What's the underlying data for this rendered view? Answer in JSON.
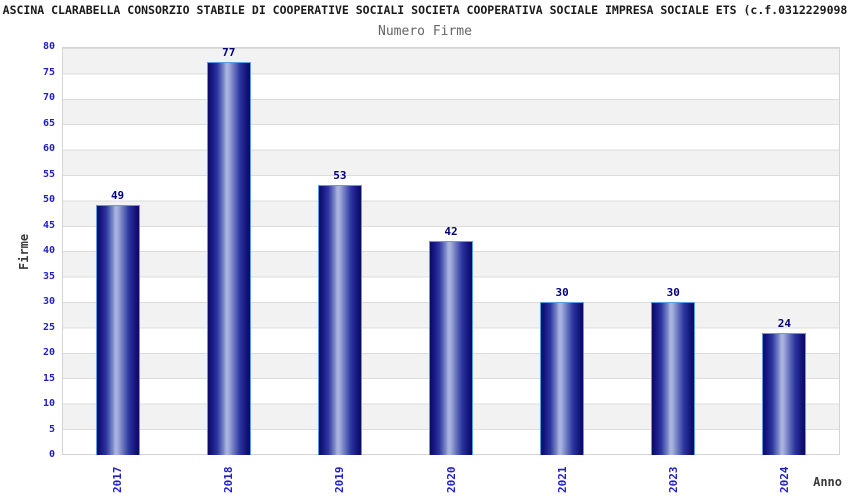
{
  "header": {
    "title": "ASCINA CLARABELLA CONSORZIO STABILE DI COOPERATIVE SOCIALI SOCIETA COOPERATIVA SOCIALE IMPRESA SOCIALE ETS (c.f.0312229098",
    "subtitle": "Numero Firme"
  },
  "chart_data": {
    "type": "bar",
    "title": "Numero Firme",
    "categories": [
      "2017",
      "2018",
      "2019",
      "2020",
      "2021",
      "2023",
      "2024"
    ],
    "values": [
      49,
      77,
      53,
      42,
      30,
      30,
      24
    ],
    "xlabel": "Anno",
    "ylabel": "Firme",
    "ylim": [
      0,
      80
    ],
    "ytick_step": 5,
    "grid": "horizontal-bands",
    "legend": "none",
    "colors": {
      "bar_dark": "#0a0a64",
      "bar_highlight": "#a8b2de",
      "bar_edge": "#58a0e6",
      "tick_text": "#2020c8",
      "value_label_text": "#00007d",
      "band_gray": "#f2f2f2",
      "band_white": "#ffffff",
      "gridline": "#dcdcdc",
      "subtitle_text": "#666666",
      "axis_label_text": "#3a3a3a"
    }
  }
}
